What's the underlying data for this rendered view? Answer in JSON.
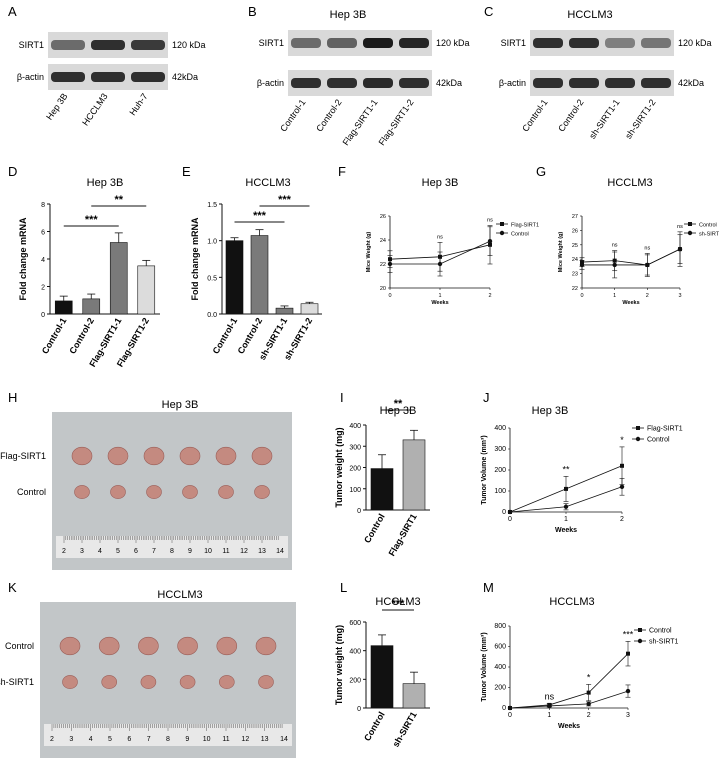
{
  "colors": {
    "black": "#111111",
    "dark_gray": "#7a7a7a",
    "light_gray": "#c9c9c9",
    "lighter_gray": "#dcdcdc",
    "blot_bg": "#d9d9d9",
    "photo_bg": "#c2c6c8",
    "tumor": "#c48a80"
  },
  "panel_letters": [
    "A",
    "B",
    "C",
    "D",
    "E",
    "F",
    "G",
    "H",
    "I",
    "J",
    "K",
    "L",
    "M"
  ],
  "blots": [
    {
      "letter": "A",
      "title": "",
      "rows": [
        "SIRT1",
        "β-actin"
      ],
      "sizes": [
        "120 kDa",
        "42kDa"
      ],
      "lanes": [
        "Hep 3B",
        "HCCLM3",
        "Huh-7"
      ]
    },
    {
      "letter": "B",
      "title": "Hep 3B",
      "rows": [
        "SIRT1",
        "β-actin"
      ],
      "sizes": [
        "120 kDa",
        "42kDa"
      ],
      "lanes": [
        "Control-1",
        "Control-2",
        "Flag-SIRT1-1",
        "Flag-SIRT1-2"
      ]
    },
    {
      "letter": "C",
      "title": "HCCLM3",
      "rows": [
        "SIRT1",
        "β-actin"
      ],
      "sizes": [
        "120 kDa",
        "42kDa"
      ],
      "lanes": [
        "Control-1",
        "Control-2",
        "sh-SIRT1-1",
        "sh-SIRT1-2"
      ]
    }
  ],
  "photos": [
    {
      "letter": "H",
      "title": "Hep 3B",
      "rows": [
        "Flag-SIRT1",
        "Control"
      ],
      "ruler": [
        "2",
        "3",
        "4",
        "5",
        "6",
        "7",
        "8",
        "9",
        "10",
        "11",
        "12",
        "13",
        "14"
      ]
    },
    {
      "letter": "K",
      "title": "HCCLM3",
      "rows": [
        "Control",
        "sh-SIRT1"
      ],
      "ruler": [
        "2",
        "3",
        "4",
        "5",
        "6",
        "7",
        "8",
        "9",
        "10",
        "11",
        "12",
        "13",
        "14"
      ]
    }
  ],
  "chart_data": [
    {
      "panel": "D",
      "type": "bar",
      "title": "Hep 3B",
      "ylabel": "Fold change mRNA",
      "ylim": [
        0,
        8
      ],
      "yticks": [
        "0",
        "2",
        "4",
        "6",
        "8"
      ],
      "categories": [
        "Control-1",
        "Control-2",
        "Flag-SIRT1-1",
        "Flag-SIRT1-2"
      ],
      "values": [
        0.95,
        1.1,
        5.2,
        3.5
      ],
      "errors": [
        0.35,
        0.35,
        0.7,
        0.4
      ],
      "colors": [
        "#111111",
        "#7a7a7a",
        "#7a7a7a",
        "#dcdcdc"
      ],
      "sig": [
        "***",
        "**"
      ]
    },
    {
      "panel": "E",
      "type": "bar",
      "title": "HCCLM3",
      "ylabel": "Fold change mRNA",
      "ylim": [
        0,
        1.5
      ],
      "yticks": [
        "0.0",
        "0.5",
        "1.0",
        "1.5"
      ],
      "categories": [
        "Control-1",
        "Control-2",
        "sh-SIRT1-1",
        "sh-SIRT1-2"
      ],
      "values": [
        1.0,
        1.07,
        0.08,
        0.14
      ],
      "errors": [
        0.04,
        0.08,
        0.03,
        0.02
      ],
      "colors": [
        "#111111",
        "#7a7a7a",
        "#7a7a7a",
        "#dcdcdc"
      ],
      "sig": [
        "***",
        "***"
      ]
    },
    {
      "panel": "F",
      "type": "line",
      "title": "Hep 3B",
      "xlabel": "Weeks",
      "ylabel": "Mice Weight (g)",
      "ylim": [
        20,
        26
      ],
      "yticks": [
        "20",
        "22",
        "24",
        "26"
      ],
      "x": [
        0,
        1,
        2
      ],
      "xticks": [
        "0",
        "1",
        "2"
      ],
      "series": [
        {
          "name": "Flag-SIRT1",
          "values": [
            22.4,
            22.6,
            23.6
          ],
          "errors": [
            0.7,
            1.2,
            1.6
          ]
        },
        {
          "name": "Control",
          "values": [
            22.0,
            22.0,
            23.9
          ],
          "errors": [
            0.7,
            1.0,
            1.2
          ]
        }
      ],
      "sig": [
        "ns",
        "ns"
      ]
    },
    {
      "panel": "G",
      "type": "line",
      "title": "HCCLM3",
      "xlabel": "Weeks",
      "ylabel": "Mice Weight (g)",
      "ylim": [
        22,
        27
      ],
      "yticks": [
        "22",
        "23",
        "24",
        "25",
        "26",
        "27"
      ],
      "x": [
        0,
        1,
        2,
        3
      ],
      "xticks": [
        "0",
        "1",
        "2",
        "3"
      ],
      "series": [
        {
          "name": "Control",
          "values": [
            23.8,
            23.9,
            23.6,
            24.7
          ],
          "errors": [
            0.3,
            0.7,
            0.8,
            1.2
          ]
        },
        {
          "name": "sh-SIRT1",
          "values": [
            23.6,
            23.6,
            23.6,
            24.7
          ],
          "errors": [
            0.3,
            0.9,
            0.7,
            1.0
          ]
        }
      ],
      "sig": [
        "ns",
        "ns",
        "ns"
      ]
    },
    {
      "panel": "I",
      "type": "bar",
      "title": "Hep 3B",
      "ylabel": "Tumor weight (mg)",
      "ylim": [
        0,
        400
      ],
      "yticks": [
        "0",
        "100",
        "200",
        "300",
        "400"
      ],
      "categories": [
        "Control",
        "Flag-SIRT1"
      ],
      "values": [
        195,
        330
      ],
      "errors": [
        65,
        45
      ],
      "colors": [
        "#111111",
        "#b0b0b0"
      ],
      "sig": [
        "**"
      ]
    },
    {
      "panel": "J",
      "type": "line",
      "title": "Hep 3B",
      "xlabel": "Weeks",
      "ylabel": "Tumor Volume (mm³)",
      "ylim": [
        0,
        400
      ],
      "yticks": [
        "0",
        "100",
        "200",
        "300",
        "400"
      ],
      "x": [
        0,
        1,
        2
      ],
      "xticks": [
        "0",
        "1",
        "2"
      ],
      "series": [
        {
          "name": "Flag-SIRT1",
          "values": [
            0,
            110,
            220
          ],
          "errors": [
            0,
            60,
            90
          ]
        },
        {
          "name": "Control",
          "values": [
            0,
            25,
            120
          ],
          "errors": [
            0,
            15,
            40
          ]
        }
      ],
      "sig": [
        "**",
        "*"
      ]
    },
    {
      "panel": "L",
      "type": "bar",
      "title": "HCCLM3",
      "ylabel": "Tumor weight (mg)",
      "ylim": [
        0,
        600
      ],
      "yticks": [
        "0",
        "200",
        "400",
        "600"
      ],
      "categories": [
        "Control",
        "sh-SIRT1"
      ],
      "values": [
        435,
        170
      ],
      "errors": [
        75,
        80
      ],
      "colors": [
        "#111111",
        "#b0b0b0"
      ],
      "sig": [
        "***"
      ]
    },
    {
      "panel": "M",
      "type": "line",
      "title": "HCCLM3",
      "xlabel": "Weeks",
      "ylabel": "Tumor Volume (mm³)",
      "ylim": [
        0,
        800
      ],
      "yticks": [
        "0",
        "200",
        "400",
        "600",
        "800"
      ],
      "x": [
        0,
        1,
        2,
        3
      ],
      "xticks": [
        "0",
        "1",
        "2",
        "3"
      ],
      "series": [
        {
          "name": "Control",
          "values": [
            0,
            30,
            150,
            530
          ],
          "errors": [
            0,
            15,
            80,
            120
          ]
        },
        {
          "name": "sh-SIRT1",
          "values": [
            0,
            20,
            40,
            165
          ],
          "errors": [
            0,
            10,
            20,
            60
          ]
        }
      ],
      "sig": [
        "ns",
        "*",
        "***"
      ]
    }
  ]
}
